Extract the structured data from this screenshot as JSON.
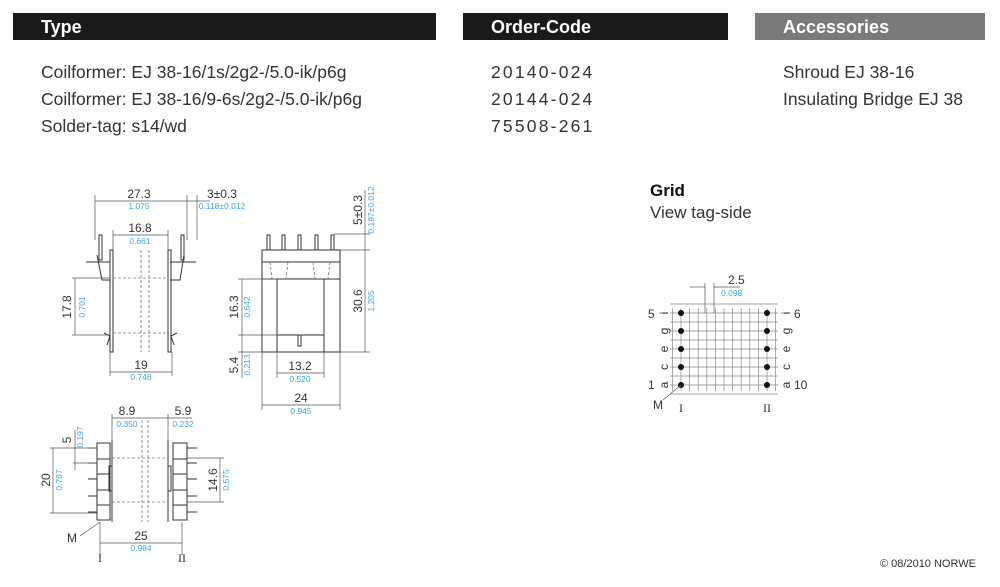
{
  "headers": {
    "type": "Type",
    "order_code": "Order-Code",
    "accessories": "Accessories"
  },
  "colors": {
    "header_dark": "#1a1a1a",
    "header_gray": "#7a7a7a",
    "inch_dim": "#3aa6e0"
  },
  "items": [
    {
      "type": "Coilformer:  EJ 38-16/1s/2g2-/5.0-ik/p6g",
      "code": "20140-024",
      "accessory": "Shroud EJ 38-16"
    },
    {
      "type": "Coilformer:  EJ 38-16/9-6s/2g2-/5.0-ik/p6g",
      "code": "20144-024",
      "accessory": "Insulating Bridge EJ 38"
    },
    {
      "type": "Solder-tag:  s14/wd",
      "code": "75508-261",
      "accessory": ""
    }
  ],
  "side_view": {
    "w1": "27.3",
    "w1_in": "1.075",
    "pin": "3±0.3",
    "pin_in": "0.118±0.012",
    "inner": "16.8",
    "inner_in": "0.661",
    "h": "17.8",
    "h_in": "0.701",
    "base": "19",
    "base_in": "0.748"
  },
  "front_view": {
    "pin_h": "5±0.3",
    "pin_h_in": "0.197±0.012",
    "total_h": "30.6",
    "total_h_in": "1.205",
    "win_h": "16.3",
    "win_h_in": "0.642",
    "foot": "5.4",
    "foot_in": "0.213",
    "win_w": "13.2",
    "win_w_in": "0.520",
    "w": "24",
    "w_in": "0.945"
  },
  "top_view": {
    "a": "8.9",
    "a_in": "0.350",
    "b": "5.9",
    "b_in": "0.232",
    "pitch": "5",
    "pitch_in": "0.197",
    "rows": "20",
    "rows_in": "0.787",
    "inner": "14.6",
    "inner_in": "0.575",
    "span": "25",
    "span_in": "0.984",
    "m": "M",
    "row1": "I",
    "row2": "II"
  },
  "grid": {
    "title": "Grid",
    "subtitle": "View tag-side",
    "pitch": "2.5",
    "pitch_in": "0.098",
    "left_top": "5",
    "left_bottom": "1",
    "right_top": "6",
    "right_bottom": "10",
    "letters": [
      "i",
      "g",
      "e",
      "c",
      "a"
    ],
    "m": "M",
    "row1": "I",
    "row2": "II"
  },
  "copyright": "© 08/2010 NORWE"
}
